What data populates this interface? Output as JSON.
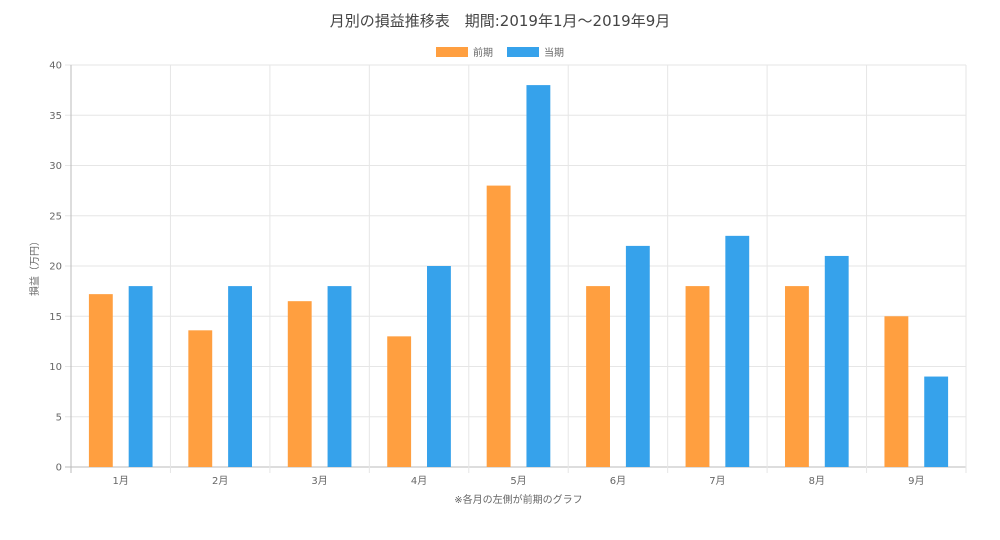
{
  "chart_data": {
    "type": "bar",
    "title": "月別の損益推移表　期間:2019年1月〜2019年9月",
    "categories": [
      "1月",
      "2月",
      "3月",
      "4月",
      "5月",
      "6月",
      "7月",
      "8月",
      "9月"
    ],
    "series": [
      {
        "name": "前期",
        "color": "#ff9f40",
        "values": [
          17.2,
          13.6,
          16.5,
          13,
          28,
          18,
          18,
          18,
          15
        ]
      },
      {
        "name": "当期",
        "color": "#36a2eb",
        "values": [
          18,
          18,
          18,
          20,
          38,
          22,
          23,
          21,
          9
        ]
      }
    ],
    "ylabel": "損益（万円）",
    "xlabel": "",
    "ylim": [
      0,
      40
    ],
    "yticks": [
      0,
      5,
      10,
      15,
      20,
      25,
      30,
      35,
      40
    ],
    "grid": true,
    "legend_position": "top-center",
    "note": "※各月の左側が前期のグラフ"
  }
}
